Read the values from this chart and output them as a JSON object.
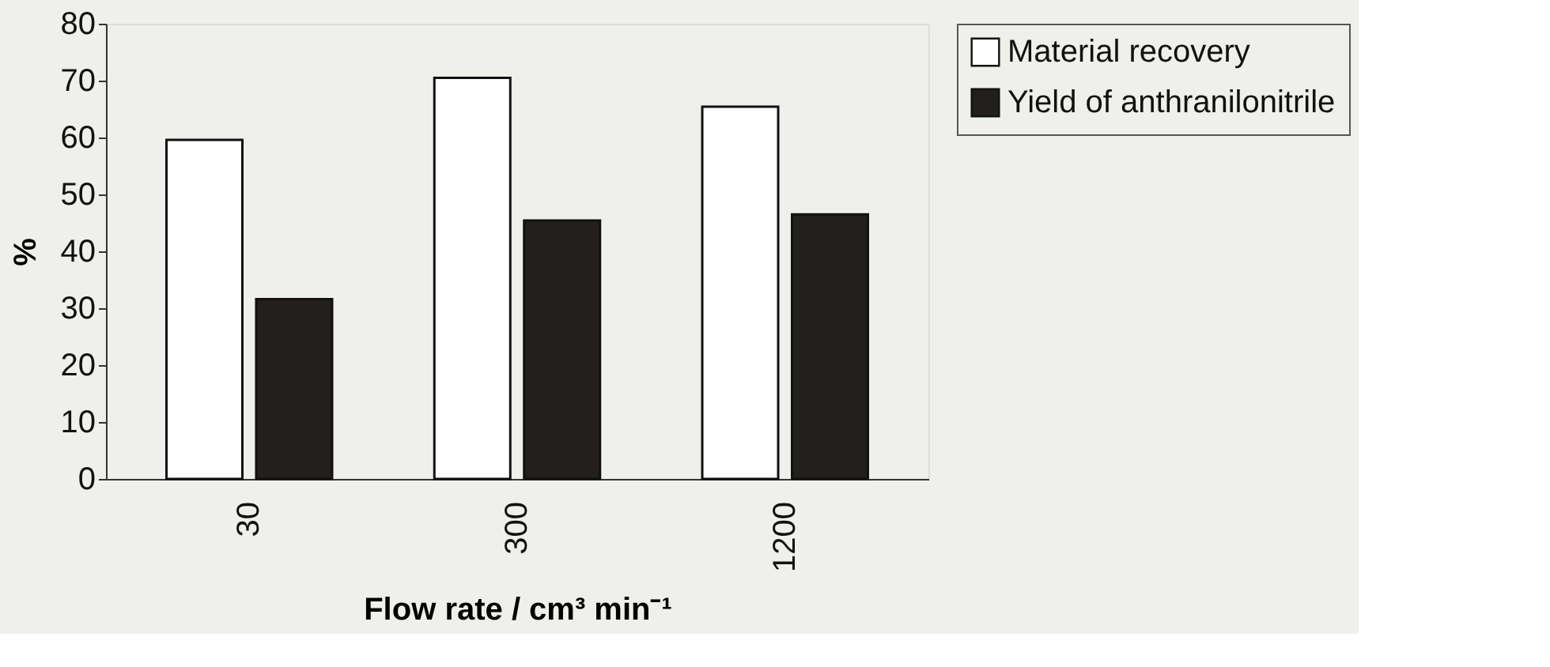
{
  "chart_data": {
    "type": "bar",
    "xlabel": "Flow rate / cm³ min⁻¹",
    "ylabel": "%",
    "categories": [
      "30",
      "300",
      "1200"
    ],
    "series": [
      {
        "name": "Material recovery",
        "color": "#ffffff",
        "values": [
          59.6,
          70.5,
          65.4
        ]
      },
      {
        "name": "Yield of anthranilonitrile",
        "color": "#231f1c",
        "values": [
          31.6,
          45.4,
          46.5
        ]
      }
    ],
    "ylim": [
      0,
      80
    ],
    "yticks": [
      0,
      10,
      20,
      30,
      40,
      50,
      60,
      70,
      80
    ],
    "grid": false,
    "legend": "right"
  }
}
